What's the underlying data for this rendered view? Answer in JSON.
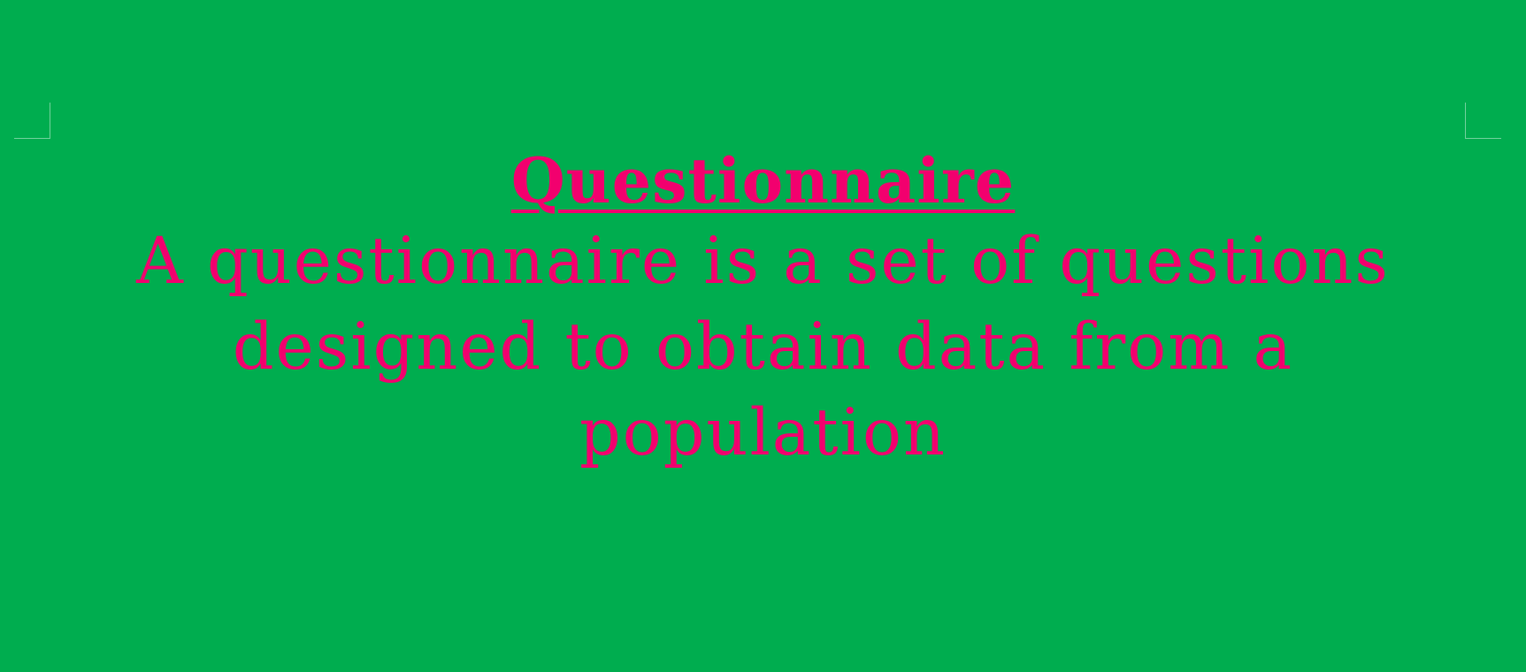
{
  "document": {
    "title": "Questionnaire",
    "definition": "A questionnaire is a set of questions designed to obtain data from a population"
  },
  "colors": {
    "background": "#00ad4f",
    "text": "#f2006e"
  }
}
